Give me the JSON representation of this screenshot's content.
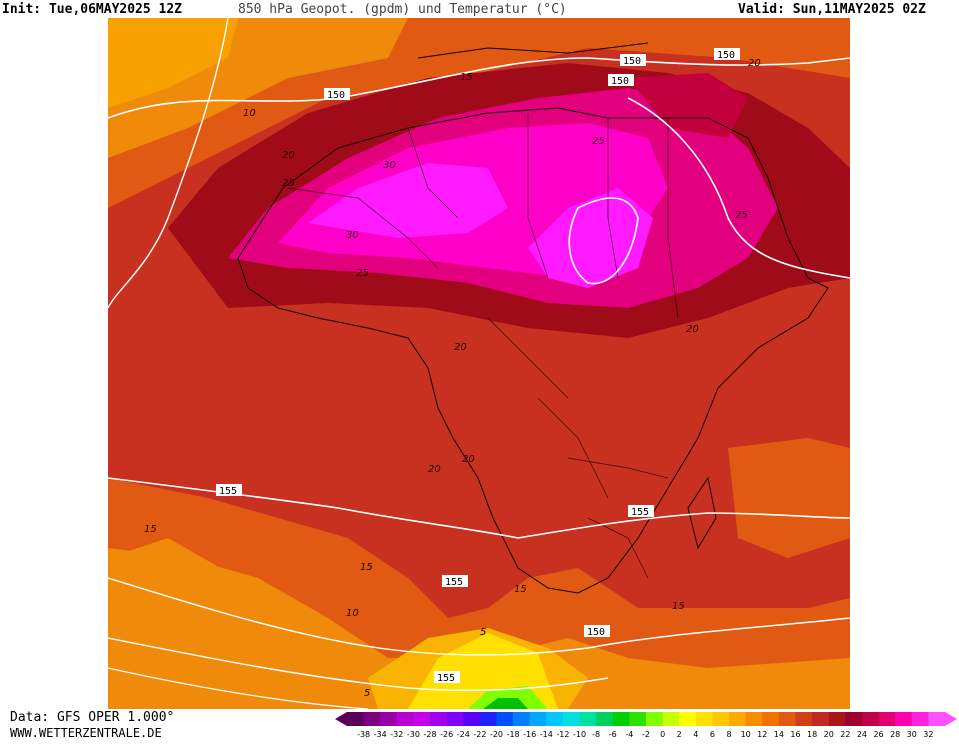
{
  "header": {
    "init": "Init: Tue,06MAY2025 12Z",
    "title": "850 hPa Geopot. (gpdm) und Temperatur (°C)",
    "valid": "Valid: Sun,11MAY2025 02Z"
  },
  "footer": {
    "data_source": "Data: GFS OPER 1.000°",
    "website": "WWW.WETTERZENTRALE.DE"
  },
  "map": {
    "region": "Africa",
    "geopotential_labels": [
      "150",
      "150",
      "150",
      "150",
      "155",
      "155",
      "155",
      "150",
      "155"
    ],
    "temperature_labels": [
      "10",
      "15",
      "20",
      "25",
      "30",
      "30",
      "25",
      "25",
      "25",
      "20",
      "20",
      "20",
      "20",
      "20",
      "15",
      "15",
      "15",
      "15",
      "10",
      "5",
      "5"
    ],
    "colors": {
      "temp_40": "#ff1aff",
      "temp_34": "#ff00c8",
      "temp_30": "#e2007e",
      "temp_26": "#c2003e",
      "temp_22": "#a00b1a",
      "temp_18": "#c02f1c",
      "temp_14": "#e05a14",
      "temp_10": "#f08a0a",
      "temp_6": "#f8b400",
      "temp_2": "#ffe000",
      "temp_0": "#80ff00",
      "temp_neg": "#00c000"
    }
  },
  "legend": {
    "tick_labels": [
      "-38",
      "-34",
      "-32",
      "-30",
      "-28",
      "-26",
      "-24",
      "-22",
      "-20",
      "-18",
      "-16",
      "-14",
      "-12",
      "-10",
      "-8",
      "-6",
      "-4",
      "-2",
      "0",
      "2",
      "4",
      "6",
      "8",
      "10",
      "12",
      "14",
      "16",
      "18",
      "20",
      "22",
      "24",
      "26",
      "28",
      "30",
      "32"
    ],
    "colors": [
      "#5a005a",
      "#7a0080",
      "#9800a8",
      "#b800d0",
      "#c600e8",
      "#a400f0",
      "#8000f8",
      "#5a00ff",
      "#2020ff",
      "#0050ff",
      "#0080ff",
      "#00a8ff",
      "#00c8ff",
      "#00e0e0",
      "#00e0a0",
      "#00d060",
      "#00d000",
      "#30e000",
      "#80ff00",
      "#c8ff00",
      "#ffff00",
      "#ffe000",
      "#ffc800",
      "#ffa800",
      "#f88c00",
      "#f07000",
      "#e05a10",
      "#d04018",
      "#c02a20",
      "#a81818",
      "#a00030",
      "#c00048",
      "#e00070",
      "#ff00b0",
      "#ff20e0",
      "#ff50ff"
    ]
  }
}
